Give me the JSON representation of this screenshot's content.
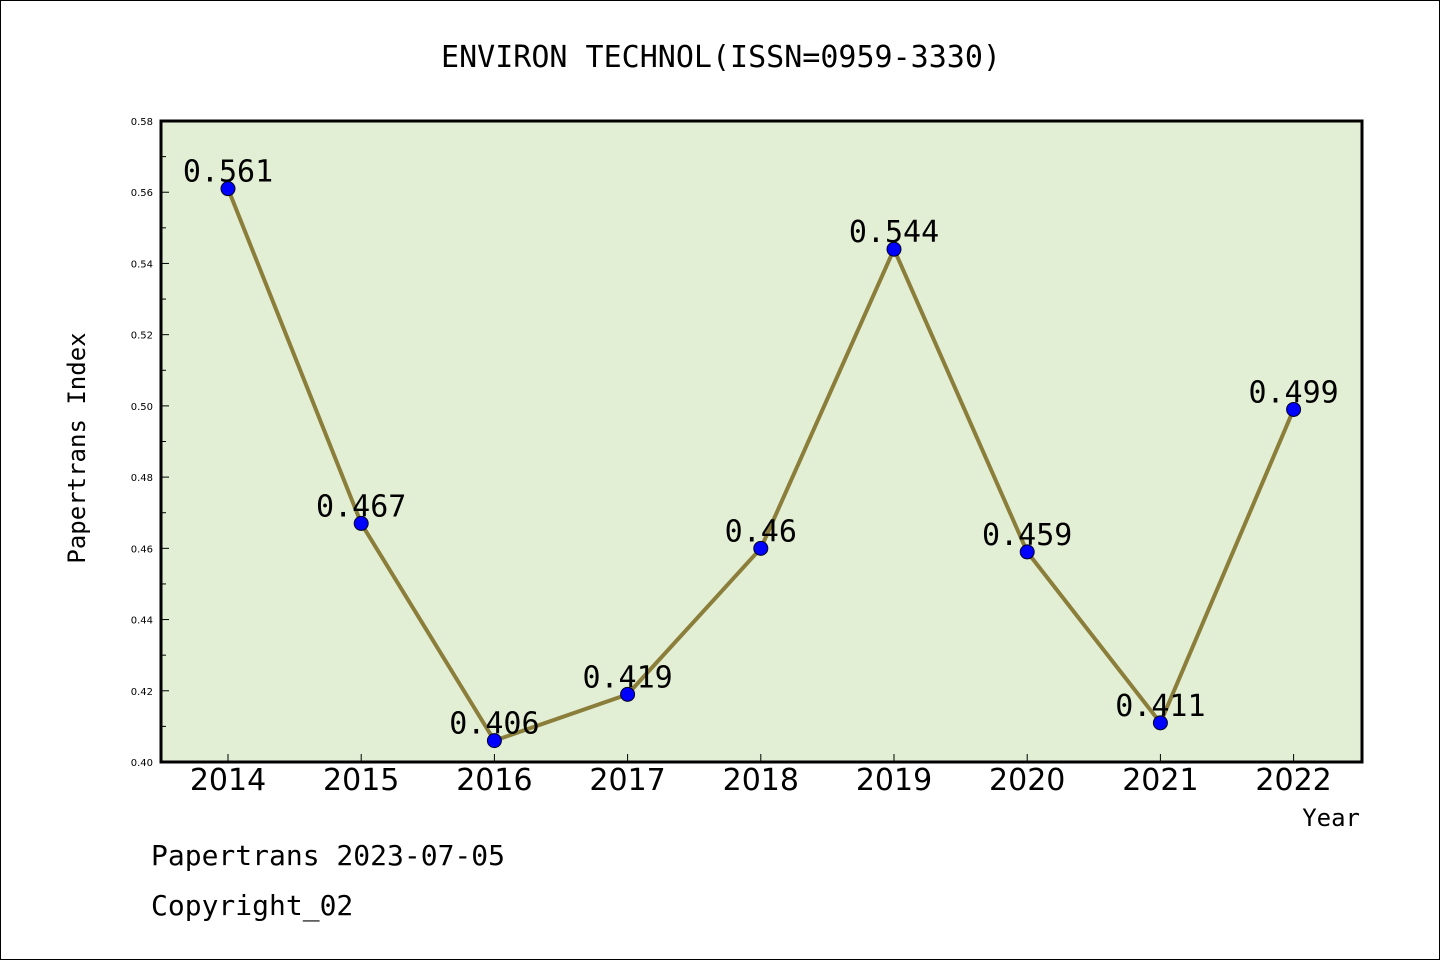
{
  "chart_data": {
    "type": "line",
    "title": "ENVIRON TECHNOL(ISSN=0959-3330)",
    "xlabel": "Year",
    "ylabel": "Papertrans Index",
    "categories": [
      "2014",
      "2015",
      "2016",
      "2017",
      "2018",
      "2019",
      "2020",
      "2021",
      "2022"
    ],
    "series": [
      {
        "values": [
          0.561,
          0.467,
          0.406,
          0.419,
          0.46,
          0.544,
          0.459,
          0.411,
          0.499
        ],
        "data_labels": [
          "0.561",
          "0.467",
          "0.406",
          "0.419",
          "0.46",
          "0.544",
          "0.459",
          "0.411",
          "0.499"
        ]
      }
    ],
    "ylim": [
      0.4,
      0.58
    ],
    "yticks": [
      "0.40",
      "0.42",
      "0.44",
      "0.46",
      "0.48",
      "0.50",
      "0.52",
      "0.54",
      "0.56",
      "0.58"
    ],
    "grid": false,
    "legend": "none",
    "colors": {
      "plot_background": "#e2efd4",
      "line": "#8b7d3a",
      "marker": "#0000ff"
    }
  },
  "footer": {
    "line1": "Papertrans 2023-07-05",
    "line2": "Copyright_02"
  }
}
